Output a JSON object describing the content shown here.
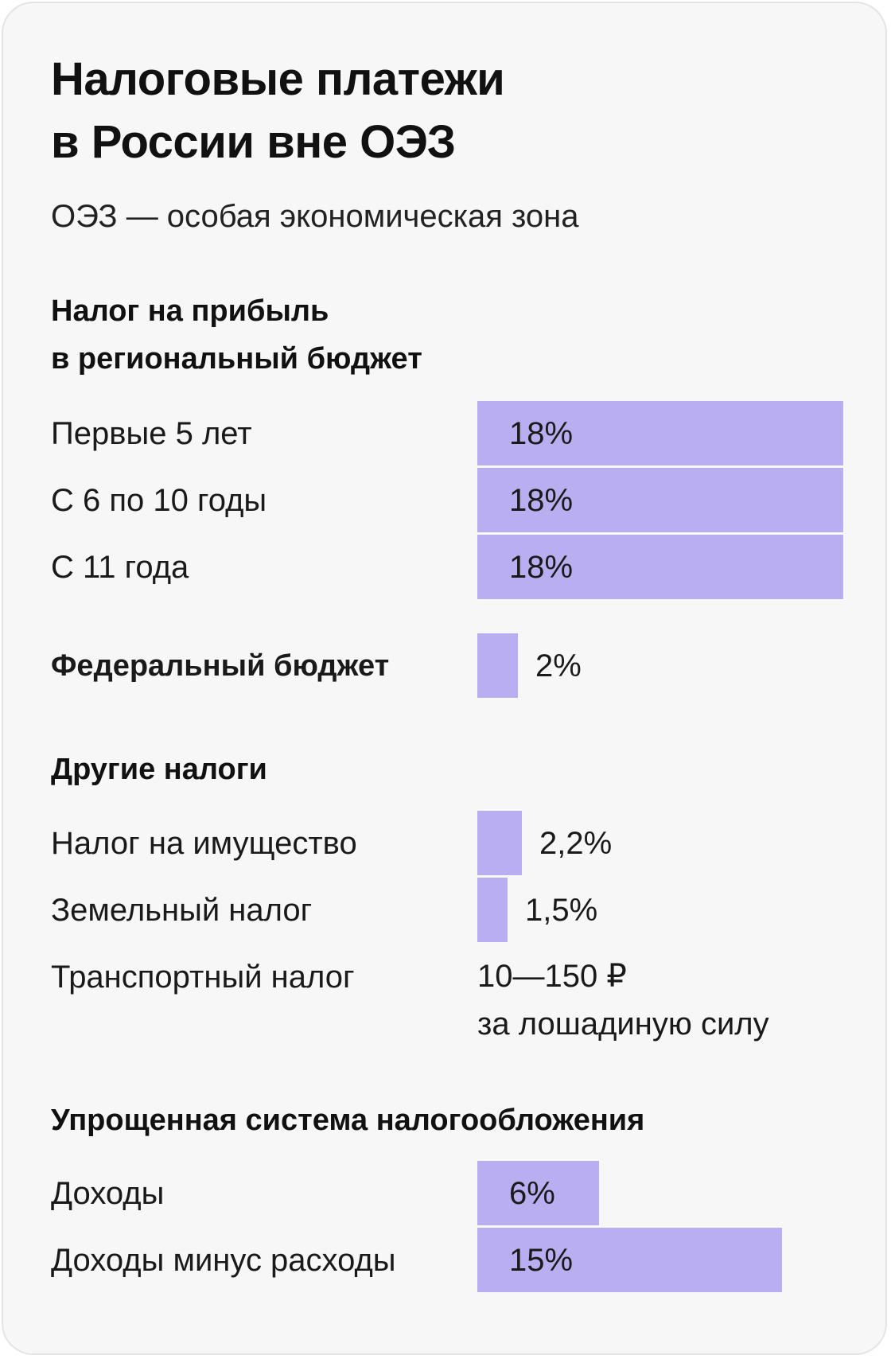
{
  "header": {
    "title_line1": "Налоговые платежи",
    "title_line2": "в России вне ОЭЗ",
    "subtitle": "ОЭЗ — особая экономическая зона"
  },
  "sections": {
    "profit_tax": {
      "heading_line1": "Налог на прибыль",
      "heading_line2": "в региональный бюджет"
    },
    "federal": {
      "label": "Федеральный бюджет"
    },
    "other": {
      "heading": "Другие налоги"
    },
    "simplified": {
      "heading": "Упрощенная система налогообложения"
    }
  },
  "rows": {
    "r1": {
      "label": "Первые 5 лет",
      "value_text": "18%"
    },
    "r2": {
      "label": "С 6 по 10 годы",
      "value_text": "18%"
    },
    "r3": {
      "label": "С 11 года",
      "value_text": "18%"
    },
    "fed": {
      "value_text": "2%"
    },
    "prop": {
      "label": "Налог на имущество",
      "value_text": "2,2%"
    },
    "land": {
      "label": "Земельный налог",
      "value_text": "1,5%"
    },
    "transport": {
      "label": "Транспортный налог",
      "value_line1": "10—150 ₽",
      "value_line2": "за лошадиную силу"
    },
    "inc": {
      "label": "Доходы",
      "value_text": "6%"
    },
    "incexp": {
      "label": "Доходы минус расходы",
      "value_text": "15%"
    }
  },
  "colors": {
    "bar": "#b8aef0",
    "card_bg": "#f7f7f7",
    "text": "#111111"
  },
  "chart_data": {
    "type": "bar",
    "orientation": "horizontal",
    "title": "Налоговые платежи в России вне ОЭЗ",
    "subtitle": "ОЭЗ — особая экономическая зона",
    "unit": "%",
    "groups": [
      {
        "name": "Налог на прибыль в региональный бюджет",
        "categories": [
          "Первые 5 лет",
          "С 6 по 10 годы",
          "С 11 года"
        ],
        "values": [
          18,
          18,
          18
        ]
      },
      {
        "name": "Федеральный бюджет",
        "categories": [
          "Федеральный бюджет"
        ],
        "values": [
          2
        ]
      },
      {
        "name": "Другие налоги",
        "categories": [
          "Налог на имущество",
          "Земельный налог",
          "Транспортный налог"
        ],
        "values": [
          2.2,
          1.5,
          null
        ],
        "value_labels": [
          "2,2%",
          "1,5%",
          "10—150 ₽ за лошадиную силу"
        ]
      },
      {
        "name": "Упрощенная система налогообложения",
        "categories": [
          "Доходы",
          "Доходы минус расходы"
        ],
        "values": [
          6,
          15
        ]
      }
    ],
    "xlim": [
      0,
      18
    ]
  }
}
